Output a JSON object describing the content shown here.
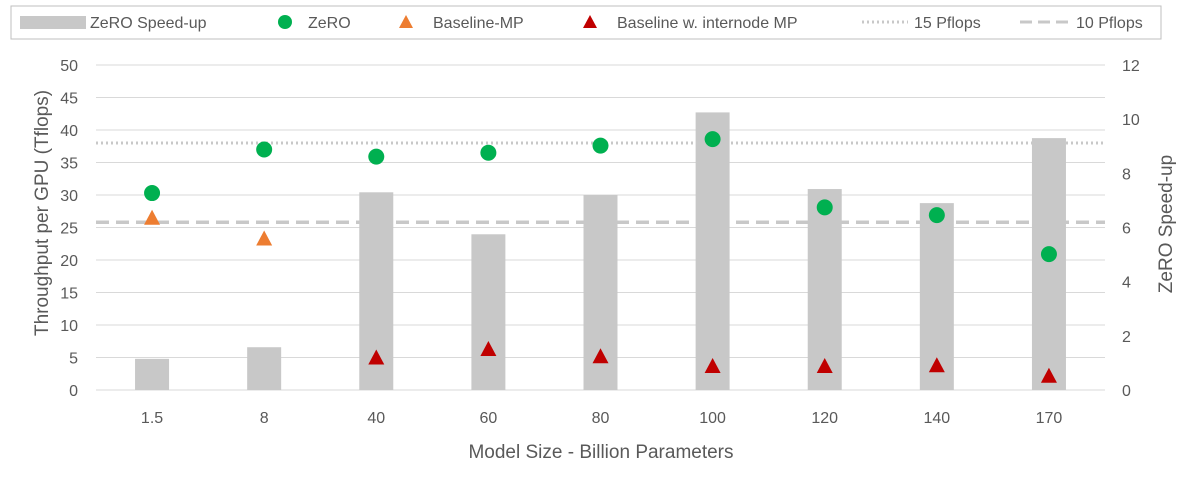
{
  "chart_data": {
    "type": "bar",
    "title": "",
    "xlabel": "Model Size - Billion Parameters",
    "ylabel": "Throughput per GPU (Tflops)",
    "y2label": "ZeRO Speed-up",
    "categories": [
      "1.5",
      "8",
      "40",
      "60",
      "80",
      "100",
      "120",
      "140",
      "170"
    ],
    "ylim": [
      0,
      50
    ],
    "yticks": [
      "0",
      "5",
      "10",
      "15",
      "20",
      "25",
      "30",
      "35",
      "40",
      "45",
      "50"
    ],
    "y2lim": [
      0,
      12
    ],
    "y2ticks": [
      "0",
      "2",
      "4",
      "6",
      "8",
      "10",
      "12"
    ],
    "grid": true,
    "legend_position": "top",
    "series": [
      {
        "name": "ZeRO Speed-up",
        "kind": "bar",
        "axis": "secondary",
        "color": "#c8c8c8",
        "values": [
          1.15,
          1.58,
          7.3,
          5.75,
          7.2,
          10.25,
          7.42,
          6.9,
          9.3
        ]
      },
      {
        "name": "ZeRO",
        "kind": "marker-circle",
        "axis": "primary",
        "color": "#00b050",
        "values": [
          30.3,
          37.0,
          35.9,
          36.5,
          37.6,
          38.6,
          28.1,
          26.9,
          20.9
        ]
      },
      {
        "name": "Baseline-MP",
        "kind": "marker-triangle",
        "axis": "primary",
        "color": "#ed7d31",
        "values": [
          26.5,
          23.3,
          null,
          null,
          null,
          null,
          null,
          null,
          null
        ]
      },
      {
        "name": "Baseline w. internode MP",
        "kind": "marker-triangle",
        "axis": "primary",
        "color": "#c00000",
        "values": [
          null,
          null,
          5.0,
          6.3,
          5.2,
          3.7,
          3.7,
          3.8,
          2.2
        ]
      },
      {
        "name": "15 Pflops",
        "kind": "hline-dotted",
        "axis": "primary",
        "color": "#c8c8c8",
        "value": 38.0
      },
      {
        "name": "10 Pflops",
        "kind": "hline-dashed",
        "axis": "primary",
        "color": "#c8c8c8",
        "value": 25.8
      }
    ]
  }
}
